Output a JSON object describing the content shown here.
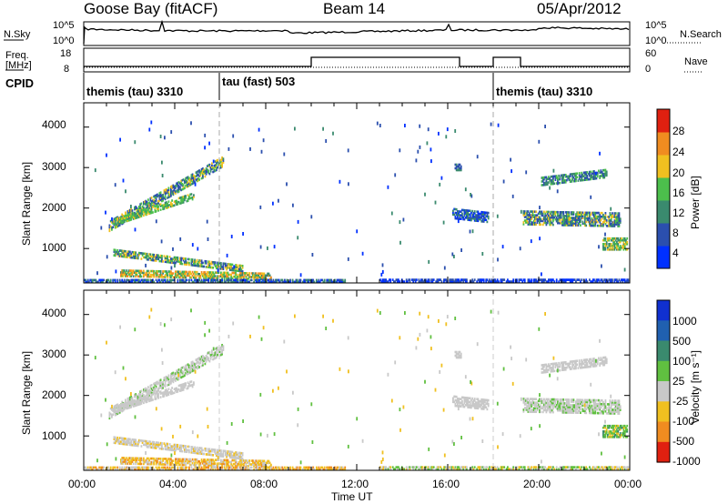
{
  "header": {
    "station": "Goose Bay (fitACF)",
    "beam": "Beam 14",
    "date": "05/Apr/2012"
  },
  "panels": {
    "noise": {
      "left_label": "N.Sky",
      "right_label": "N.Search",
      "left_ticks": [
        "10^5",
        "10^0"
      ],
      "right_ticks": [
        "10^5",
        "10^0"
      ]
    },
    "freq": {
      "left_label_1": "Freq.",
      "left_label_2": "[MHz]",
      "right_label": "Nave",
      "left_ticks": [
        "18",
        "8"
      ],
      "right_ticks": [
        "60",
        "0"
      ]
    },
    "cpid": {
      "label": "CPID",
      "segments": [
        {
          "name": "themis (tau) 3310",
          "start": 0,
          "end": 6
        },
        {
          "name": "tau (fast) 503",
          "start": 6,
          "end": 18
        },
        {
          "name": "themis (tau) 3310",
          "start": 18,
          "end": 24
        }
      ]
    }
  },
  "chart_data": [
    {
      "type": "heatmap",
      "name": "power",
      "ylabel": "Slant Range [km]",
      "yticks": [
        "1000",
        "2000",
        "3000",
        "4000"
      ],
      "ylim": [
        150,
        4600
      ],
      "colorbar_label": "Power [dB]",
      "colorbar_ticks": [
        "4",
        "8",
        "12",
        "16",
        "20",
        "24",
        "28"
      ],
      "colors": [
        "#0030ff",
        "#2b4fae",
        "#3a8a6e",
        "#4cbf4c",
        "#f0c020",
        "#f08c20",
        "#e02010"
      ]
    },
    {
      "type": "heatmap",
      "name": "velocity",
      "ylabel": "Slant Range [km]",
      "yticks": [
        "1000",
        "2000",
        "3000",
        "4000"
      ],
      "ylim": [
        150,
        4600
      ],
      "colorbar_label": "Velocity [m s⁻¹]",
      "colorbar_ticks": [
        "1000",
        "500",
        "100",
        "25",
        "-25",
        "-100",
        "-500",
        "-1000"
      ],
      "colors": [
        "#1030d0",
        "#2060b0",
        "#3a8a6e",
        "#60c040",
        "#c8c8c8",
        "#f0c020",
        "#f08c20",
        "#e02010"
      ]
    }
  ],
  "xaxis": {
    "label": "Time UT",
    "ticks": [
      "00:00",
      "04:00",
      "08:00",
      "12:00",
      "16:00",
      "20:00",
      "00:00"
    ]
  }
}
